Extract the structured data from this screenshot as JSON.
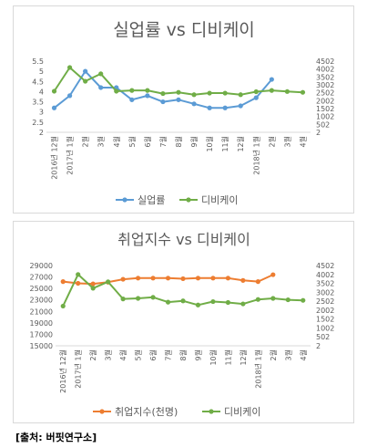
{
  "charts": [
    {
      "title": "실업률 vs 디비케이",
      "categories": [
        "2016년 12월",
        "2017년 1월",
        "2월",
        "3월",
        "4월",
        "5월",
        "6월",
        "7월",
        "8월",
        "9월",
        "10월",
        "11월",
        "12월",
        "2018년 1월",
        "2월",
        "3월",
        "4월"
      ],
      "left_axis": {
        "min": 2,
        "max": 5.5,
        "ticks": [
          "5.5",
          "5",
          "4.5",
          "4",
          "3.5",
          "3",
          "2.5",
          "2"
        ],
        "tick_values": [
          5.5,
          5,
          4.5,
          4,
          3.5,
          3,
          2.5,
          2
        ]
      },
      "right_axis": {
        "min": 2,
        "max": 4502,
        "ticks": [
          "4502",
          "4002",
          "3502",
          "3002",
          "2502",
          "2002",
          "1502",
          "1002",
          "502",
          "2"
        ],
        "tick_values": [
          4502,
          4002,
          3502,
          3002,
          2502,
          2002,
          1502,
          1002,
          502,
          2
        ]
      },
      "series": [
        {
          "name": "실업률",
          "color": "#5b9bd5",
          "axis": "left",
          "values": [
            3.2,
            3.8,
            5.0,
            4.2,
            4.2,
            3.6,
            3.8,
            3.5,
            3.6,
            3.4,
            3.2,
            3.2,
            3.3,
            3.7,
            4.6,
            null,
            null
          ]
        },
        {
          "name": "디비케이",
          "color": "#70ad47",
          "axis": "right",
          "values": [
            2600,
            4100,
            3230,
            3700,
            2600,
            2650,
            2650,
            2450,
            2530,
            2380,
            2480,
            2480,
            2380,
            2570,
            2650,
            2580,
            2530
          ]
        }
      ]
    },
    {
      "title": "취업지수 vs 디비케이",
      "categories": [
        "2016년 12월",
        "2017년 1월",
        "2월",
        "3월",
        "4월",
        "5월",
        "6월",
        "7월",
        "8월",
        "9월",
        "10월",
        "11월",
        "12월",
        "2018년 1월",
        "2월",
        "3월",
        "4월"
      ],
      "left_axis": {
        "min": 15000,
        "max": 29000,
        "ticks": [
          "29000",
          "27000",
          "25000",
          "23000",
          "21000",
          "19000",
          "17000",
          "15000"
        ],
        "tick_values": [
          29000,
          27000,
          25000,
          23000,
          21000,
          19000,
          17000,
          15000
        ]
      },
      "right_axis": {
        "min": 2,
        "max": 4502,
        "ticks": [
          "4502",
          "4002",
          "3502",
          "3002",
          "2502",
          "2002",
          "1502",
          "1002",
          "502",
          "2"
        ],
        "tick_values": [
          4502,
          4002,
          3502,
          3002,
          2502,
          2002,
          1502,
          1002,
          502,
          2
        ]
      },
      "series": [
        {
          "name": "취업지수(천명)",
          "color": "#ed7d31",
          "axis": "left",
          "values": [
            26200,
            25900,
            25800,
            26100,
            26600,
            26800,
            26800,
            26800,
            26700,
            26800,
            26800,
            26800,
            26400,
            26200,
            27400,
            null,
            null
          ]
        },
        {
          "name": "디비케이",
          "color": "#70ad47",
          "axis": "right",
          "values": [
            2230,
            4000,
            3230,
            3590,
            2630,
            2660,
            2720,
            2450,
            2520,
            2290,
            2480,
            2430,
            2350,
            2600,
            2660,
            2580,
            2550
          ]
        }
      ]
    }
  ],
  "chart_data": [
    {
      "type": "line",
      "title": "실업률 vs 디비케이",
      "categories": [
        "2016년 12월",
        "2017년 1월",
        "2월",
        "3월",
        "4월",
        "5월",
        "6월",
        "7월",
        "8월",
        "9월",
        "10월",
        "11월",
        "12월",
        "2018년 1월",
        "2월",
        "3월",
        "4월"
      ],
      "series": [
        {
          "name": "실업률",
          "axis": "left",
          "values": [
            3.2,
            3.8,
            5.0,
            4.2,
            4.2,
            3.6,
            3.8,
            3.5,
            3.6,
            3.4,
            3.2,
            3.2,
            3.3,
            3.7,
            4.6,
            null,
            null
          ]
        },
        {
          "name": "디비케이",
          "axis": "right",
          "values": [
            2600,
            4100,
            3230,
            3700,
            2600,
            2650,
            2650,
            2450,
            2530,
            2380,
            2480,
            2480,
            2380,
            2570,
            2650,
            2580,
            2530
          ]
        }
      ],
      "ylim_left": [
        2,
        5.5
      ],
      "ylim_right": [
        2,
        4502
      ],
      "legend": "bottom"
    },
    {
      "type": "line",
      "title": "취업지수 vs 디비케이",
      "categories": [
        "2016년 12월",
        "2017년 1월",
        "2월",
        "3월",
        "4월",
        "5월",
        "6월",
        "7월",
        "8월",
        "9월",
        "10월",
        "11월",
        "12월",
        "2018년 1월",
        "2월",
        "3월",
        "4월"
      ],
      "series": [
        {
          "name": "취업지수(천명)",
          "axis": "left",
          "values": [
            26200,
            25900,
            25800,
            26100,
            26600,
            26800,
            26800,
            26800,
            26700,
            26800,
            26800,
            26800,
            26400,
            26200,
            27400,
            null,
            null
          ]
        },
        {
          "name": "디비케이",
          "axis": "right",
          "values": [
            2230,
            4000,
            3230,
            3590,
            2630,
            2660,
            2720,
            2450,
            2520,
            2290,
            2480,
            2430,
            2350,
            2600,
            2660,
            2580,
            2550
          ]
        }
      ],
      "ylim_left": [
        15000,
        29000
      ],
      "ylim_right": [
        2,
        4502
      ],
      "legend": "bottom"
    }
  ],
  "source": "[출처: 버핏연구소]"
}
